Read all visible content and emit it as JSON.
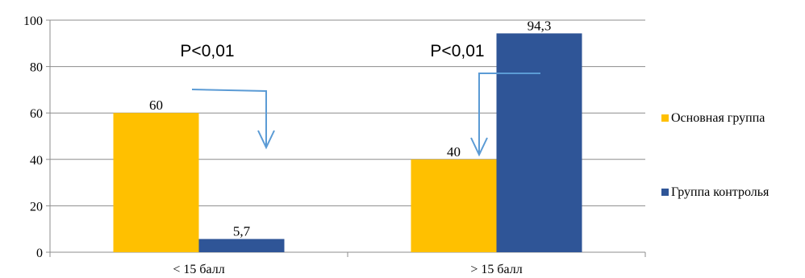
{
  "chart_data": {
    "type": "bar",
    "categories": [
      "< 15 балл",
      "> 15 балл"
    ],
    "series": [
      {
        "name": "Основная группа",
        "values": [
          60,
          40
        ],
        "labels": [
          "60",
          "40"
        ],
        "color": "#FFC000"
      },
      {
        "name": "Группа контролья",
        "values": [
          5.7,
          94.3
        ],
        "labels": [
          "5,7",
          "94,3"
        ],
        "color": "#2F5597"
      }
    ],
    "yticks": [
      0,
      20,
      40,
      60,
      80,
      100
    ],
    "ylim": [
      0,
      100
    ],
    "grid": true,
    "legend": "right",
    "annotations": [
      "P<0,01",
      "P<0,01"
    ],
    "arrow_color": "#5B9BD5"
  }
}
